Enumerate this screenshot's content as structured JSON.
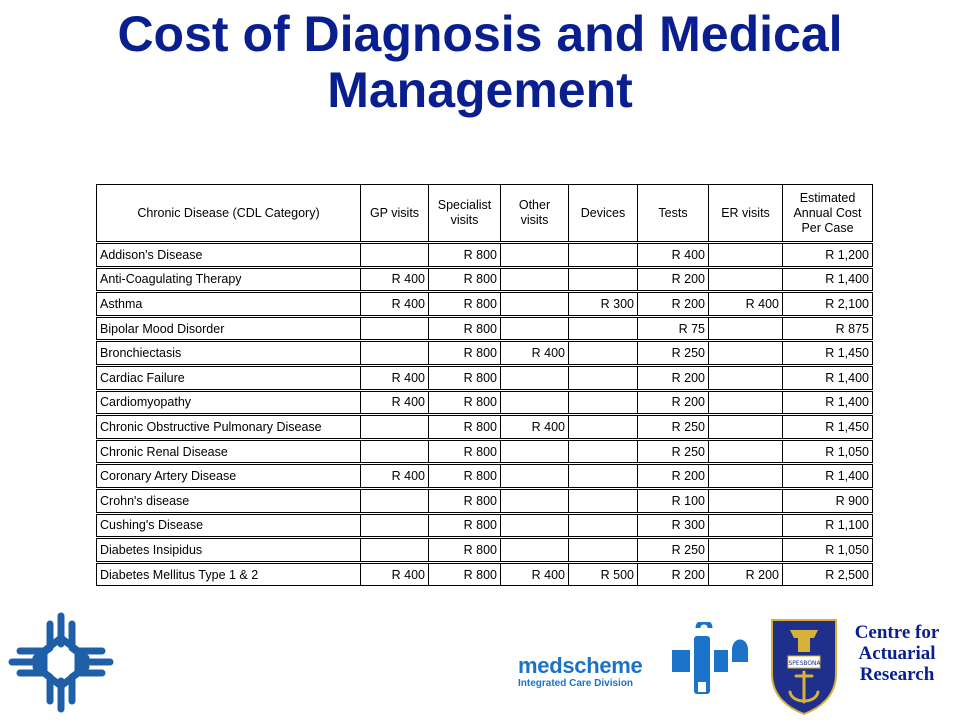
{
  "title": {
    "line1": "Cost of Diagnosis and Medical",
    "line2": "Management"
  },
  "table": {
    "headers": [
      "Chronic Disease (CDL Category)",
      "GP visits",
      "Specialist visits",
      "Other visits",
      "Devices",
      "Tests",
      "ER visits",
      "Estimated Annual Cost Per Case"
    ],
    "rows": [
      [
        "Addison's Disease",
        "",
        "R 800",
        "",
        "",
        "R 400",
        "",
        "R 1,200"
      ],
      [
        "Anti-Coagulating Therapy",
        "R 400",
        "R 800",
        "",
        "",
        "R 200",
        "",
        "R 1,400"
      ],
      [
        "Asthma",
        "R 400",
        "R 800",
        "",
        "R 300",
        "R 200",
        "R 400",
        "R 2,100"
      ],
      [
        "Bipolar Mood Disorder",
        "",
        "R 800",
        "",
        "",
        "R 75",
        "",
        "R 875"
      ],
      [
        "Bronchiectasis",
        "",
        "R 800",
        "R 400",
        "",
        "R 250",
        "",
        "R 1,450"
      ],
      [
        "Cardiac Failure",
        "R 400",
        "R 800",
        "",
        "",
        "R 200",
        "",
        "R 1,400"
      ],
      [
        "Cardiomyopathy",
        "R 400",
        "R 800",
        "",
        "",
        "R 200",
        "",
        "R 1,400"
      ],
      [
        "Chronic Obstructive Pulmonary Disease",
        "",
        "R 800",
        "R 400",
        "",
        "R 250",
        "",
        "R 1,450"
      ],
      [
        "Chronic Renal Disease",
        "",
        "R 800",
        "",
        "",
        "R 250",
        "",
        "R 1,050"
      ],
      [
        "Coronary Artery Disease",
        "R 400",
        "R 800",
        "",
        "",
        "R 200",
        "",
        "R 1,400"
      ],
      [
        "Crohn's disease",
        "",
        "R 800",
        "",
        "",
        "R 100",
        "",
        "R 900"
      ],
      [
        "Cushing's Disease",
        "",
        "R 800",
        "",
        "",
        "R 300",
        "",
        "R 1,100"
      ],
      [
        "Diabetes Insipidus",
        "",
        "R 800",
        "",
        "",
        "R 250",
        "",
        "R 1,050"
      ],
      [
        "Diabetes Mellitus Type 1 & 2",
        "R 400",
        "R 800",
        "R 400",
        "R 500",
        "R 200",
        "R 200",
        "R 2,500"
      ]
    ]
  },
  "logos": {
    "medscheme_brand": "medscheme",
    "medscheme_sub": "Integrated Care Division",
    "crest_motto_left": "SPES",
    "crest_motto_right": "BONA",
    "centre_line1": "Centre for",
    "centre_line2": "Actuarial",
    "centre_line3": "Research",
    "left_logo_icon": "cross-network-icon",
    "mid_logo_icon": "medscheme-mark-icon",
    "crest_icon": "university-crest-icon"
  },
  "colors": {
    "title": "#0a1f8f",
    "logo_blue": "#1a73c9",
    "crest_blue": "#1f2f8c",
    "crest_gold": "#d8b13a"
  }
}
